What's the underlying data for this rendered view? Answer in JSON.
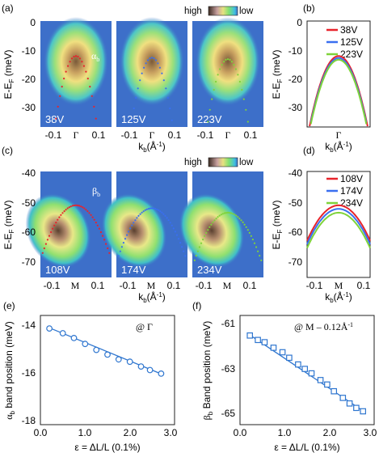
{
  "figure": {
    "panel_labels": [
      "(a)",
      "(b)",
      "(c)",
      "(d)",
      "(e)",
      "(f)"
    ],
    "colorbar": {
      "high_label": "high",
      "low_label": "low"
    },
    "colors": {
      "red": "#e8232b",
      "blue": "#3a6ff0",
      "green": "#7fd33a",
      "fit": "#2f76cf",
      "map_bg": "#3d6fc9"
    },
    "row_a": {
      "ylabel": "E-E",
      "ylabel_sub": "F",
      "yunit": " (meV)",
      "yticks": [
        "0",
        "-10",
        "-20",
        "-30"
      ],
      "xticks": [
        "-0.1",
        "Γ",
        "0.1"
      ],
      "xlabel": "k",
      "xlabel_sub": "b",
      "xunit": "(Å",
      "xunit_sup": "-1",
      "xunit_end": ")",
      "band_label": "α",
      "band_label_sub": "b",
      "panels": [
        {
          "voltage": "38V"
        },
        {
          "voltage": "125V"
        },
        {
          "voltage": "223V"
        }
      ]
    },
    "row_c": {
      "ylabel": "E-E",
      "ylabel_sub": "F",
      "yunit": " (meV)",
      "yticks": [
        "-40",
        "-50",
        "-60",
        "-70"
      ],
      "xticks": [
        "-0.1",
        "M",
        "0.1"
      ],
      "xlabel": "k",
      "xlabel_sub": "b",
      "xunit": "(Å",
      "xunit_sup": "-1",
      "xunit_end": ")",
      "band_label": "β",
      "band_label_sub": "b",
      "panels": [
        {
          "voltage": "108V"
        },
        {
          "voltage": "174V"
        },
        {
          "voltage": "234V"
        }
      ]
    },
    "panel_b": {
      "ylabel": "E-E",
      "ylabel_sub": "F",
      "yunit": " (meV)",
      "yticks": [
        "0",
        "-10",
        "-20",
        "-30"
      ],
      "xtick": "Γ",
      "legend": [
        "38V",
        "125V",
        "223V"
      ]
    },
    "panel_d": {
      "ylabel": "E-E",
      "ylabel_sub": "F",
      "yunit": " (meV)",
      "yticks": [
        "-40",
        "-50",
        "-60",
        "-70"
      ],
      "xticks": [
        "-0.1",
        "M",
        "0.1"
      ],
      "legend": [
        "108V",
        "174V",
        "234V"
      ]
    },
    "panel_e": {
      "ylabel": "α",
      "ylabel_sub": "b",
      "ylabel_rest": " band position (meV)",
      "xlabel": "ε = ΔL/L (0.1%)",
      "yticks": [
        "-14",
        "-16",
        "-18"
      ],
      "xticks": [
        "0.0",
        "1.0",
        "2.0",
        "3.0"
      ],
      "annotation": "@ Γ"
    },
    "panel_f": {
      "ylabel": "β",
      "ylabel_sub": "b",
      "ylabel_rest": " Band position (meV)",
      "xlabel": "ε = ΔL/L (0.1%)",
      "yticks": [
        "-61",
        "-63",
        "-65"
      ],
      "xticks": [
        "0.0",
        "1.0",
        "2.0",
        "3.0"
      ],
      "annotation": "@ M – 0.12Å",
      "annotation_sup": "-1"
    }
  },
  "chart_data": [
    {
      "panel": "(a)",
      "type": "heatmap",
      "series": [
        "38V",
        "125V",
        "223V"
      ],
      "xlim": [
        -0.16,
        0.16
      ],
      "ylim": [
        -37,
        0
      ],
      "band_top_meV": [
        -12.2,
        -12.8,
        -13.3
      ],
      "band_curvature": 2700
    },
    {
      "panel": "(b)",
      "type": "line",
      "xlim": [
        -0.1,
        0.1
      ],
      "ylim": [
        -37,
        0
      ],
      "series": [
        {
          "name": "38V",
          "color": "#e8232b",
          "apex": -12.2,
          "curvature": 2900
        },
        {
          "name": "125V",
          "color": "#3a6ff0",
          "apex": -12.9,
          "curvature": 2900
        },
        {
          "name": "223V",
          "color": "#7fd33a",
          "apex": -13.5,
          "curvature": 2900
        }
      ]
    },
    {
      "panel": "(c)",
      "type": "heatmap",
      "series": [
        "108V",
        "174V",
        "234V"
      ],
      "xlim": [
        -0.16,
        0.16
      ],
      "ylim": [
        -76,
        -40
      ],
      "band_top_meV": [
        -51.5,
        -52.5,
        -54.0
      ],
      "band_curvature": 720
    },
    {
      "panel": "(d)",
      "type": "line",
      "xlim": [
        -0.16,
        0.16
      ],
      "ylim": [
        -76,
        -40
      ],
      "series": [
        {
          "name": "108V",
          "color": "#e8232b",
          "apex": -51.5,
          "curvature": 470
        },
        {
          "name": "174V",
          "color": "#3a6ff0",
          "apex": -52.7,
          "curvature": 470
        },
        {
          "name": "234V",
          "color": "#7fd33a",
          "apex": -54.0,
          "curvature": 470
        }
      ]
    },
    {
      "panel": "(e)",
      "type": "scatter",
      "xlabel": "ε = ΔL/L (0.1%)",
      "ylabel": "α_b band position (meV)",
      "xlim": [
        0,
        3.0
      ],
      "ylim": [
        -18.2,
        -13.6
      ],
      "x": [
        0.2,
        0.5,
        0.75,
        1.0,
        1.25,
        1.5,
        1.75,
        2.0,
        2.25,
        2.45,
        2.7
      ],
      "y": [
        -14.15,
        -14.35,
        -14.55,
        -14.8,
        -15.05,
        -15.25,
        -15.45,
        -15.55,
        -15.75,
        -15.9,
        -16.05
      ],
      "fit": {
        "x": [
          0.2,
          2.75
        ],
        "y": [
          -14.12,
          -16.1
        ]
      }
    },
    {
      "panel": "(f)",
      "type": "scatter",
      "xlabel": "ε = ΔL/L (0.1%)",
      "ylabel": "β_b Band position (meV)",
      "xlim": [
        0,
        3.0
      ],
      "ylim": [
        -65.3,
        -60.4
      ],
      "x": [
        0.22,
        0.4,
        0.55,
        0.75,
        0.95,
        1.1,
        1.3,
        1.45,
        1.6,
        1.8,
        1.95,
        2.1,
        2.3,
        2.45,
        2.6,
        2.75
      ],
      "y": [
        -61.3,
        -61.5,
        -61.6,
        -61.85,
        -62.05,
        -62.3,
        -62.6,
        -62.8,
        -63.0,
        -63.3,
        -63.5,
        -63.8,
        -64.1,
        -64.35,
        -64.55,
        -64.7
      ],
      "fit": {
        "x": [
          0.2,
          2.8
        ],
        "y": [
          -61.25,
          -64.75
        ]
      }
    }
  ]
}
